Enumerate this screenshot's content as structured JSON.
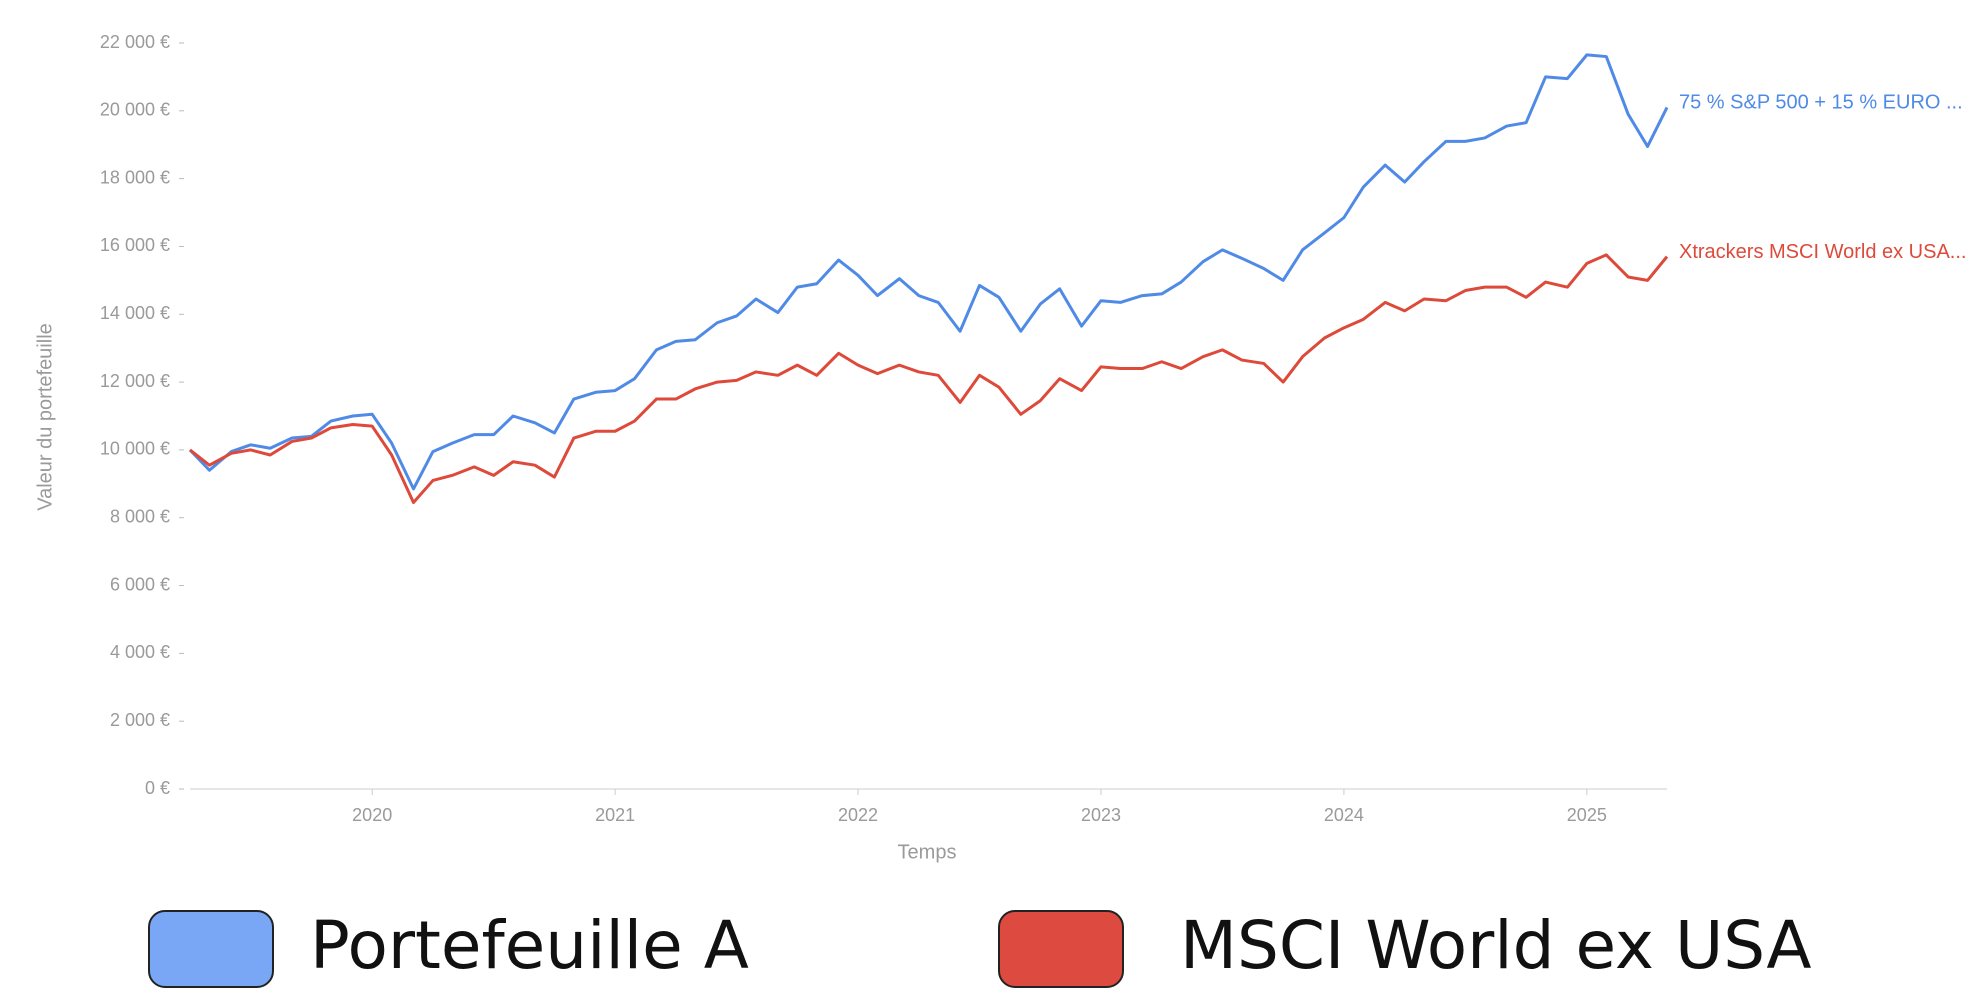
{
  "chart_data": {
    "type": "line",
    "x_label": "Temps",
    "y_label": "Valeur du portefeuille",
    "x": [
      2019.25,
      2019.33,
      2019.42,
      2019.5,
      2019.58,
      2019.67,
      2019.75,
      2019.83,
      2019.92,
      2020,
      2020.08,
      2020.17,
      2020.25,
      2020.33,
      2020.42,
      2020.5,
      2020.58,
      2020.67,
      2020.75,
      2020.83,
      2020.92,
      2021,
      2021.08,
      2021.17,
      2021.25,
      2021.33,
      2021.42,
      2021.5,
      2021.58,
      2021.67,
      2021.75,
      2021.83,
      2021.92,
      2022,
      2022.08,
      2022.17,
      2022.25,
      2022.33,
      2022.42,
      2022.5,
      2022.58,
      2022.67,
      2022.75,
      2022.83,
      2022.92,
      2023,
      2023.08,
      2023.17,
      2023.25,
      2023.33,
      2023.42,
      2023.5,
      2023.58,
      2023.67,
      2023.75,
      2023.83,
      2023.92,
      2024,
      2024.08,
      2024.17,
      2024.25,
      2024.33,
      2024.42,
      2024.5,
      2024.58,
      2024.67,
      2024.75,
      2024.83,
      2024.92,
      2025,
      2025.08,
      2025.17,
      2025.25,
      2025.33
    ],
    "series": [
      {
        "name": "75 % S&P 500 + 15 % EURO ...",
        "color": "#4f8ae6",
        "values": [
          10000,
          9400,
          9950,
          10150,
          10050,
          10350,
          10400,
          10850,
          11000,
          11050,
          10200,
          8850,
          9950,
          10200,
          10450,
          10450,
          11000,
          10800,
          10500,
          11500,
          11700,
          11750,
          12100,
          12950,
          13200,
          13250,
          13750,
          13950,
          14450,
          14050,
          14800,
          14900,
          15600,
          15150,
          14550,
          15050,
          14550,
          14350,
          13500,
          14850,
          14500,
          13500,
          14300,
          14750,
          13650,
          14400,
          14350,
          14550,
          14600,
          14950,
          15550,
          15900,
          15650,
          15350,
          15000,
          15900,
          16400,
          16850,
          17750,
          18400,
          17900,
          18500,
          19100,
          19100,
          19200,
          19550,
          19650,
          21000,
          20950,
          21650,
          21600,
          19900,
          18950,
          20100
        ]
      },
      {
        "name": "Xtrackers MSCI World ex USA...",
        "color": "#dd4a3a",
        "values": [
          10000,
          9550,
          9900,
          10000,
          9850,
          10250,
          10350,
          10650,
          10750,
          10700,
          9850,
          8450,
          9100,
          9250,
          9500,
          9250,
          9650,
          9550,
          9200,
          10350,
          10550,
          10550,
          10850,
          11500,
          11500,
          11800,
          12000,
          12050,
          12300,
          12200,
          12500,
          12200,
          12850,
          12500,
          12250,
          12500,
          12300,
          12200,
          11400,
          12200,
          11850,
          11050,
          11450,
          12100,
          11750,
          12450,
          12400,
          12400,
          12600,
          12400,
          12750,
          12950,
          12650,
          12550,
          12000,
          12750,
          13300,
          13600,
          13850,
          14350,
          14100,
          14450,
          14400,
          14700,
          14800,
          14800,
          14500,
          14950,
          14800,
          15500,
          15750,
          15100,
          15000,
          15700
        ]
      }
    ],
    "xlim": [
      2019.25,
      2025.33
    ],
    "xticks": [
      2020,
      2021,
      2022,
      2023,
      2024,
      2025
    ],
    "ylim": [
      0,
      22000
    ],
    "yticks": [
      {
        "value": 0,
        "label": "0 €"
      },
      {
        "value": 2000,
        "label": "2 000 €"
      },
      {
        "value": 4000,
        "label": "4 000 €"
      },
      {
        "value": 6000,
        "label": "6 000 €"
      },
      {
        "value": 8000,
        "label": "8 000 €"
      },
      {
        "value": 10000,
        "label": "10 000 €"
      },
      {
        "value": 12000,
        "label": "12 000 €"
      },
      {
        "value": 14000,
        "label": "14 000 €"
      },
      {
        "value": 16000,
        "label": "16 000 €"
      },
      {
        "value": 18000,
        "label": "18 000 €"
      },
      {
        "value": 20000,
        "label": "20 000 €"
      },
      {
        "value": 22000,
        "label": "22 000 €"
      }
    ],
    "grid": false,
    "legend": [
      {
        "label": "Portefeuille A",
        "color": "#7aa7f5"
      },
      {
        "label": "MSCI World ex USA",
        "color": "#dd4b40"
      }
    ]
  }
}
